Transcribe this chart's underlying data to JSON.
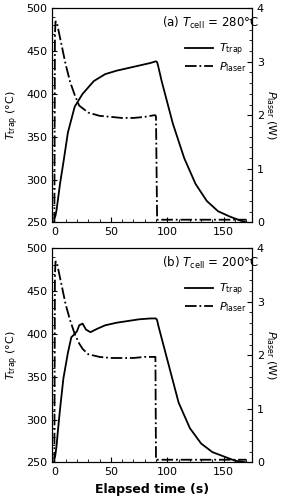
{
  "panel_a": {
    "title": "(a) $T_{\\mathrm{cell}}$ = 280°C",
    "Ttrap": {
      "x": [
        0,
        0.5,
        1,
        2,
        3,
        5,
        8,
        12,
        18,
        25,
        35,
        45,
        55,
        65,
        75,
        85,
        90,
        91,
        92,
        95,
        100,
        105,
        115,
        125,
        135,
        145,
        155,
        165,
        170
      ],
      "y": [
        255,
        256,
        258,
        265,
        275,
        295,
        320,
        355,
        385,
        400,
        415,
        423,
        427,
        430,
        433,
        436,
        438,
        437,
        432,
        415,
        390,
        365,
        325,
        295,
        275,
        263,
        257,
        252,
        250
      ]
    },
    "Plaser": {
      "x": [
        -1,
        0,
        0.5,
        1,
        2,
        4,
        6,
        10,
        14,
        18,
        22,
        30,
        40,
        50,
        60,
        70,
        80,
        88,
        89.5,
        90,
        91,
        92,
        170
      ],
      "y": [
        0,
        0,
        3.5,
        3.75,
        3.75,
        3.55,
        3.35,
        2.95,
        2.62,
        2.38,
        2.18,
        2.05,
        1.99,
        1.97,
        1.95,
        1.95,
        1.97,
        2.0,
        2.0,
        1.97,
        0.05,
        0.05,
        0.05
      ]
    }
  },
  "panel_b": {
    "title": "(b) $T_{\\mathrm{cell}}$ = 200°C",
    "Ttrap": {
      "x": [
        0,
        0.5,
        1,
        2,
        3,
        5,
        8,
        12,
        15,
        18,
        20,
        22,
        25,
        28,
        32,
        38,
        45,
        55,
        65,
        75,
        85,
        90,
        91,
        92,
        95,
        100,
        110,
        120,
        130,
        140,
        150,
        160,
        170
      ],
      "y": [
        255,
        256,
        260,
        270,
        285,
        312,
        348,
        378,
        396,
        400,
        403,
        410,
        412,
        405,
        402,
        406,
        410,
        413,
        415,
        417,
        418,
        418,
        416,
        410,
        395,
        370,
        320,
        290,
        272,
        262,
        257,
        252,
        250
      ]
    },
    "Plaser": {
      "x": [
        -1,
        0,
        0.5,
        1,
        2,
        4,
        6,
        10,
        14,
        18,
        22,
        25,
        30,
        40,
        50,
        60,
        70,
        80,
        88,
        89.5,
        90,
        91,
        92,
        170
      ],
      "y": [
        0,
        0,
        3.5,
        3.75,
        3.75,
        3.55,
        3.35,
        2.95,
        2.65,
        2.4,
        2.22,
        2.12,
        2.02,
        1.97,
        1.95,
        1.95,
        1.95,
        1.97,
        1.97,
        1.97,
        0.05,
        0.05,
        0.05,
        0.05
      ]
    }
  },
  "xlim": [
    -2,
    175
  ],
  "xticks": [
    0,
    50,
    100,
    150
  ],
  "ylim_left": [
    250,
    500
  ],
  "yticks_left": [
    250,
    300,
    350,
    400,
    450,
    500
  ],
  "ylim_right": [
    0,
    4
  ],
  "yticks_right": [
    0,
    1,
    2,
    3,
    4
  ],
  "xlabel": "Elapsed time (s)",
  "ylabel_left": "$T_{\\mathrm{trap}}$ (°C)",
  "ylabel_right": "$P_{\\mathrm{laser}}$ (W)",
  "legend_Ttrap": "$T_{\\mathrm{trap}}$",
  "legend_Plaser": "$P_{\\mathrm{laser}}$",
  "line_color": "black",
  "background": "white"
}
